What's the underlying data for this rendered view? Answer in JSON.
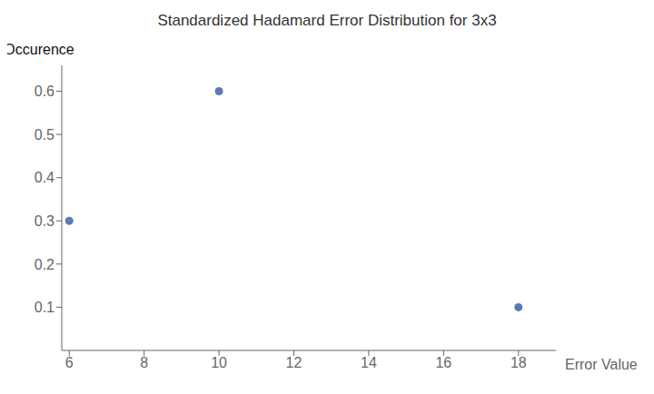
{
  "chart_data": {
    "type": "scatter",
    "title": "Standardized Hadamard Error Distribution for 3x3",
    "xlabel": "Error Value",
    "ylabel": "Occurence",
    "x": [
      6,
      10,
      18
    ],
    "values": [
      0.3,
      0.6,
      0.1
    ],
    "color": "#5a7ab5",
    "xlim": [
      5.8,
      19.0
    ],
    "ylim": [
      0,
      0.66
    ],
    "xticks": [
      6,
      8,
      10,
      12,
      14,
      16,
      18
    ],
    "yticks": [
      0.1,
      0.2,
      0.3,
      0.4,
      0.5,
      0.6
    ],
    "grid": false
  }
}
